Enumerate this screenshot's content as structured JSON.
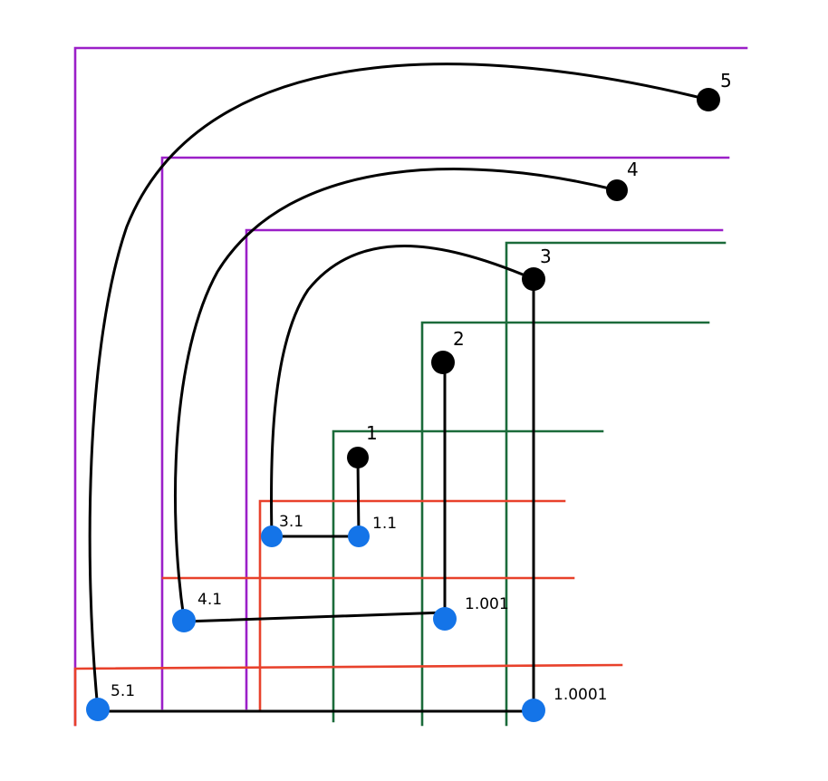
{
  "colors": {
    "purple": "#9B1FC8",
    "green": "#1B6B3A",
    "red": "#E8412B",
    "blue_node": "#1474E8",
    "black_node": "#000000",
    "edge": "#000000",
    "background": "#FFFFFF"
  },
  "nodes": {
    "top": [
      {
        "id": "1",
        "label": "1",
        "color": "black"
      },
      {
        "id": "2",
        "label": "2",
        "color": "black"
      },
      {
        "id": "3",
        "label": "3",
        "color": "black"
      },
      {
        "id": "4",
        "label": "4",
        "color": "black"
      },
      {
        "id": "5",
        "label": "5",
        "color": "black"
      }
    ],
    "bottom": [
      {
        "id": "1.1",
        "label": "1.1",
        "color": "blue"
      },
      {
        "id": "3.1",
        "label": "3.1",
        "color": "blue"
      },
      {
        "id": "4.1",
        "label": "4.1",
        "color": "blue"
      },
      {
        "id": "1.001",
        "label": "1.001",
        "color": "blue"
      },
      {
        "id": "5.1",
        "label": "5.1",
        "color": "blue"
      },
      {
        "id": "1.0001",
        "label": "1.0001",
        "color": "blue"
      }
    ]
  },
  "edges": [
    {
      "from": "1",
      "to": "1.1"
    },
    {
      "from": "2",
      "to": "1.001"
    },
    {
      "from": "3",
      "to": "1.0001"
    },
    {
      "from": "3",
      "to": "3.1"
    },
    {
      "from": "4",
      "to": "4.1"
    },
    {
      "from": "5",
      "to": "5.1"
    },
    {
      "from": "3.1",
      "to": "1.1"
    },
    {
      "from": "4.1",
      "to": "1.001"
    },
    {
      "from": "5.1",
      "to": "1.0001"
    }
  ]
}
